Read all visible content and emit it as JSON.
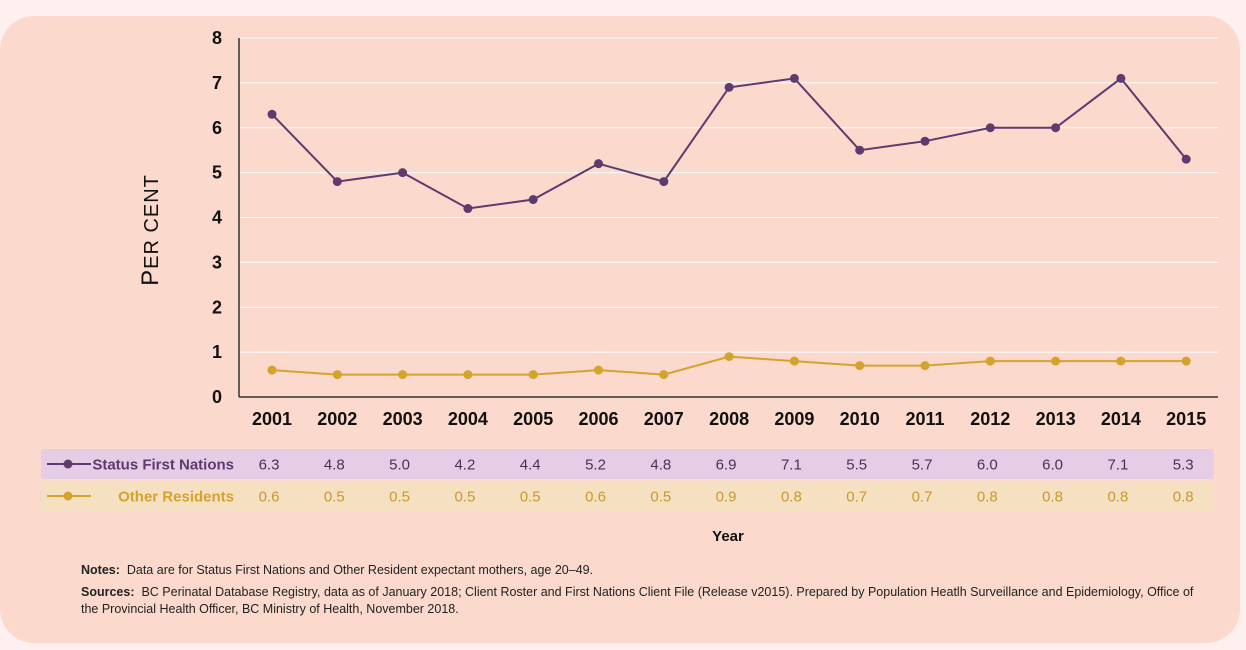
{
  "chart_data": {
    "type": "line",
    "categories": [
      "2001",
      "2002",
      "2003",
      "2004",
      "2005",
      "2006",
      "2007",
      "2008",
      "2009",
      "2010",
      "2011",
      "2012",
      "2013",
      "2014",
      "2015"
    ],
    "series": [
      {
        "name": "Status First Nations",
        "color": "#5e3a6e",
        "row_color": "#e6cde6",
        "values": [
          "6.3",
          "4.8",
          "5.0",
          "4.2",
          "4.4",
          "5.2",
          "4.8",
          "6.9",
          "7.1",
          "5.5",
          "5.7",
          "6.0",
          "6.0",
          "7.1",
          "5.3"
        ]
      },
      {
        "name": "Other Residents",
        "color": "#d4a32e",
        "row_color": "#f6e0c2",
        "values": [
          "0.6",
          "0.5",
          "0.5",
          "0.5",
          "0.5",
          "0.6",
          "0.5",
          "0.9",
          "0.8",
          "0.7",
          "0.7",
          "0.8",
          "0.8",
          "0.8",
          "0.8"
        ]
      }
    ],
    "yticks": [
      "0",
      "1",
      "2",
      "3",
      "4",
      "5",
      "6",
      "7",
      "8"
    ],
    "ylim": [
      0,
      8
    ],
    "ylabel": "Per cent",
    "xlabel": "Year",
    "grid": true,
    "legend": "data table below x-axis"
  },
  "notes": {
    "label": "Notes:",
    "text": "Data are for Status First Nations and Other Resident expectant mothers, age 20–49."
  },
  "sources": {
    "label": "Sources:",
    "text": "BC Perinatal Database Registry, data as of January 2018; Client Roster and First Nations Client File (Release v2015). Prepared by Population Heatlh Surveillance and Epidemiology, Office of the Provincial Health Officer, BC Ministry of Health, November 2018."
  }
}
